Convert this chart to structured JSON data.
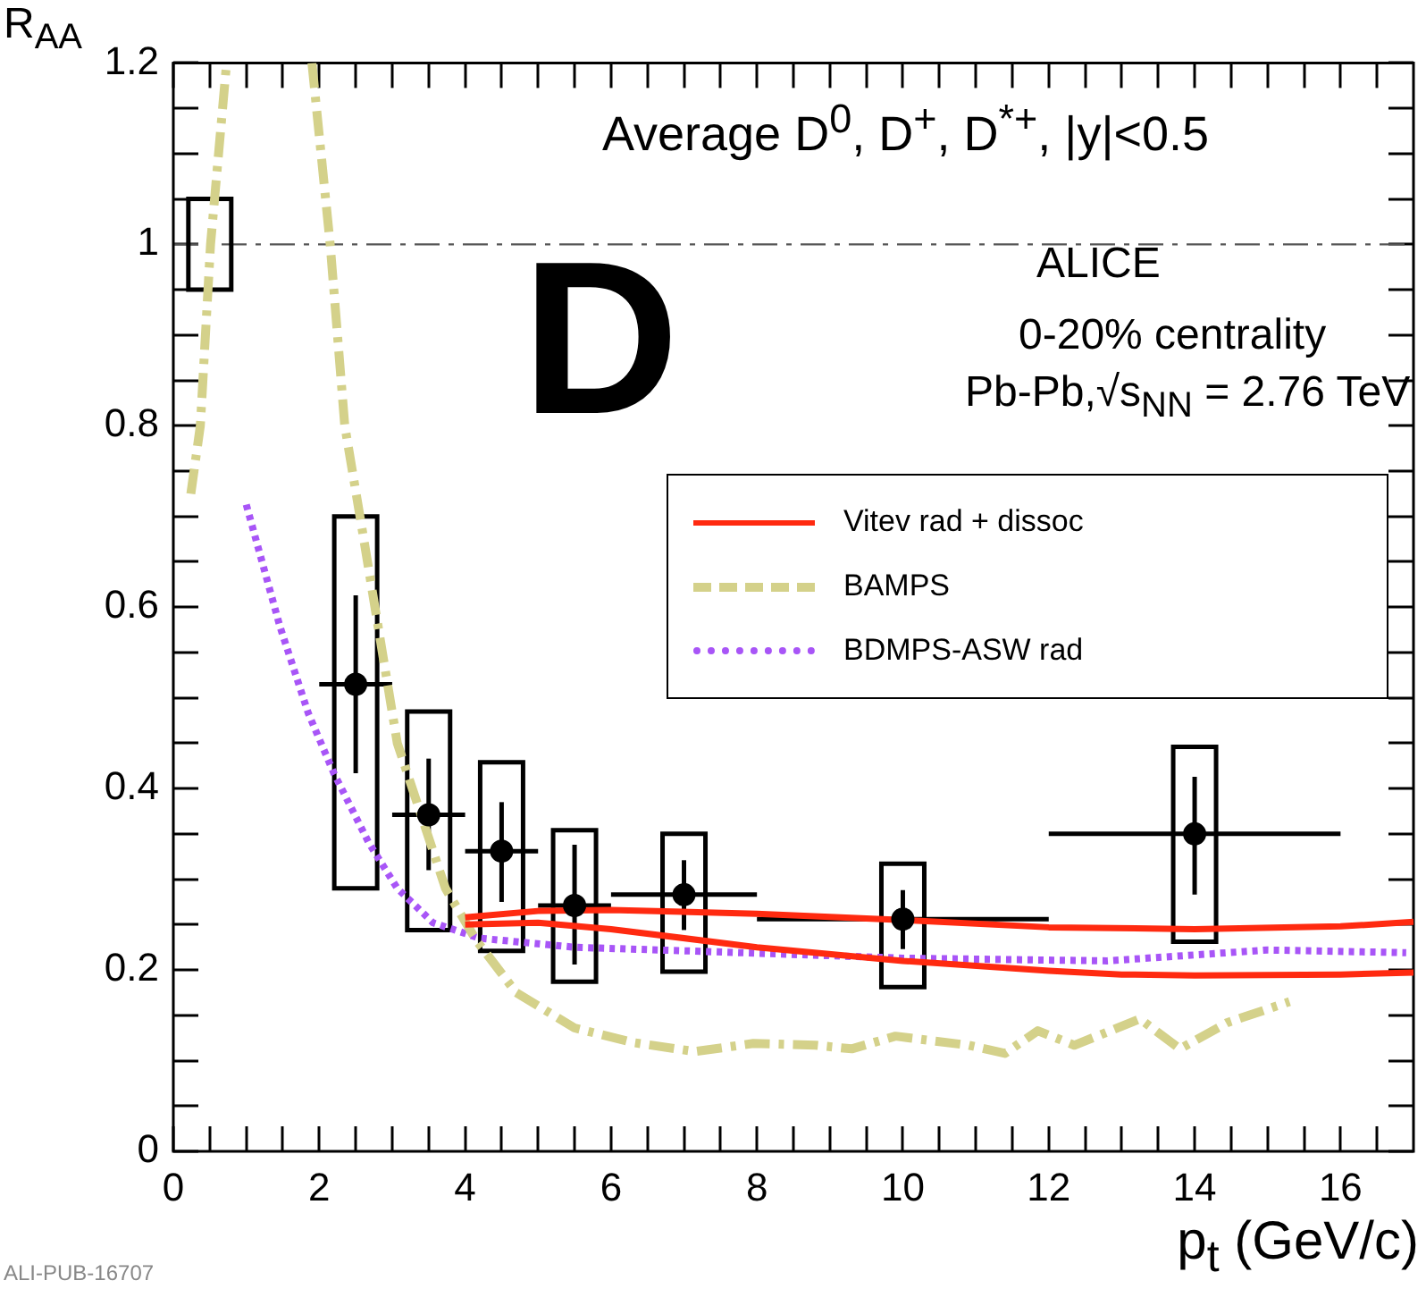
{
  "chart_data": {
    "type": "scatter",
    "title": "Average D$^{0}$, D$^{+}$, D$^{*+}$, |y|<0.5",
    "xlabel": "p$_{t}$ (GeV/c)",
    "ylabel": "R$_{AA}$",
    "annotations": [
      "D",
      "ALICE",
      "0-20% centrality",
      "Pb-Pb,√s$_{NN}$ = 2.76 TeV",
      "ALI-PUB-16707"
    ],
    "xlim": [
      0,
      17
    ],
    "ylim": [
      0,
      1.2
    ],
    "xticks": [
      0,
      {
        "value": 0.5,
        "label": null
      },
      {
        "value": 1,
        "label": null
      },
      {
        "value": 1.5,
        "label": null
      },
      2,
      {
        "value": 2.5,
        "label": null
      },
      {
        "value": 3,
        "label": null
      },
      {
        "value": 3.5,
        "label": null
      },
      4,
      {
        "value": 4.5,
        "label": null
      },
      {
        "value": 5,
        "label": null
      },
      {
        "value": 5.5,
        "label": null
      },
      6,
      {
        "value": 6.5,
        "label": null
      },
      {
        "value": 7,
        "label": null
      },
      {
        "value": 7.5,
        "label": null
      },
      8,
      {
        "value": 8.5,
        "label": null
      },
      {
        "value": 9,
        "label": null
      },
      {
        "value": 9.5,
        "label": null
      },
      10,
      {
        "value": 10.5,
        "label": null
      },
      {
        "value": 11,
        "label": null
      },
      {
        "value": 11.5,
        "label": null
      },
      12,
      {
        "value": 12.5,
        "label": null
      },
      {
        "value": 13,
        "label": null
      },
      {
        "value": 13.5,
        "label": null
      },
      14,
      {
        "value": 14.5,
        "label": null
      },
      {
        "value": 15,
        "label": null
      },
      {
        "value": 15.5,
        "label": null
      },
      16,
      {
        "value": 16.5,
        "label": null
      }
    ],
    "yticks": [
      0,
      {
        "value": 0.05,
        "label": null
      },
      {
        "value": 0.1,
        "label": null
      },
      {
        "value": 0.15,
        "label": null
      },
      0.2,
      {
        "value": 0.25,
        "label": null
      },
      {
        "value": 0.3,
        "label": null
      },
      {
        "value": 0.35,
        "label": null
      },
      0.4,
      {
        "value": 0.45,
        "label": null
      },
      {
        "value": 0.5,
        "label": null
      },
      {
        "value": 0.55,
        "label": null
      },
      0.6,
      {
        "value": 0.65,
        "label": null
      },
      {
        "value": 0.7,
        "label": null
      },
      {
        "value": 0.75,
        "label": null
      },
      0.8,
      {
        "value": 0.85,
        "label": null
      },
      {
        "value": 0.9,
        "label": null
      },
      {
        "value": 0.95,
        "label": null
      },
      1,
      {
        "value": 1.05,
        "label": null
      },
      {
        "value": 1.1,
        "label": null
      },
      {
        "value": 1.15,
        "label": null
      },
      1.2
    ],
    "ref_lines": [
      {
        "axis": "y",
        "value": 1,
        "color": "#555555",
        "line_style": "dashed"
      }
    ],
    "legend": "right",
    "series": [
      {
        "type": "bar",
        "color": "#000000",
        "x": [
          0.5,
          2.5,
          3.5,
          4.5,
          5.5,
          7,
          10,
          14
        ],
        "base": [
          0.95,
          0.29,
          0.244,
          0.221,
          0.187,
          0.198,
          0.181,
          0.231
        ],
        "values": [
          0.1,
          0.41,
          0.241,
          0.208,
          0.167,
          0.152,
          0.136,
          0.215
        ]
      },
      {
        "type": "line",
        "name": "Vitev rad + dissoc",
        "color": "#ff2a10",
        "line_style": "solid",
        "x": [
          4,
          5,
          6,
          8,
          10,
          12,
          14,
          16,
          17
        ],
        "values": [
          0.258,
          0.265,
          0.266,
          0.262,
          0.255,
          0.247,
          0.245,
          0.248,
          0.253
        ]
      },
      {
        "type": "line",
        "color": "#ff2a10",
        "line_style": "solid",
        "x": [
          4,
          5,
          6,
          8,
          10,
          12,
          13,
          14,
          16,
          17
        ],
        "values": [
          0.25,
          0.252,
          0.245,
          0.225,
          0.21,
          0.199,
          0.195,
          0.194,
          0.195,
          0.197
        ]
      },
      {
        "type": "line",
        "name": "BAMPS",
        "color": "#d4d18a",
        "line_style": "dashed",
        "x": [
          0.24,
          0.37,
          0.51,
          0.73,
          1.3,
          1.9,
          2.15,
          2.35,
          2.6,
          3.07,
          3.73,
          4.15,
          4.7,
          5.5,
          6.3,
          7.15,
          7.95,
          8.8,
          9.3,
          9.9,
          10.9,
          11.4,
          11.85,
          12.35,
          13.25,
          13.8,
          14.45,
          15.3
        ],
        "values": [
          0.725,
          0.8,
          1.0,
          1.2,
          null,
          1.2,
          1.0,
          0.8,
          0.68,
          0.45,
          0.29,
          0.233,
          0.175,
          0.136,
          0.12,
          0.11,
          0.119,
          0.117,
          0.113,
          0.127,
          0.117,
          0.108,
          0.133,
          0.117,
          0.146,
          0.113,
          0.142,
          0.165
        ]
      },
      {
        "type": "line",
        "name": "BDMPS-ASW rad",
        "color": "#a855f7",
        "line_style": "dotted",
        "x": [
          1.0,
          1.46,
          1.85,
          2.2,
          2.68,
          3.07,
          3.56,
          4.2,
          5.5,
          7.05,
          10,
          12.8,
          15,
          16.9
        ],
        "values": [
          0.713,
          0.579,
          0.483,
          0.417,
          0.34,
          0.29,
          0.252,
          0.235,
          0.225,
          0.221,
          0.213,
          0.21,
          0.222,
          0.219
        ]
      },
      {
        "marker": "circle",
        "color": "#000000",
        "x": [
          2.5,
          3.5,
          4.5,
          5.5,
          7,
          10,
          14
        ],
        "values": [
          0.515,
          0.371,
          0.331,
          0.271,
          0.283,
          0.256,
          0.35
        ],
        "errors": [
          [
            0.417,
            0.613
          ],
          [
            0.31,
            0.433
          ],
          [
            0.275,
            0.385
          ],
          [
            0.206,
            0.338
          ],
          [
            0.244,
            0.321
          ],
          [
            0.223,
            0.288
          ],
          [
            0.283,
            0.413
          ]
        ],
        "xerrors": [
          0.5,
          0.5,
          0.5,
          0.5,
          1,
          2,
          2
        ]
      }
    ]
  }
}
